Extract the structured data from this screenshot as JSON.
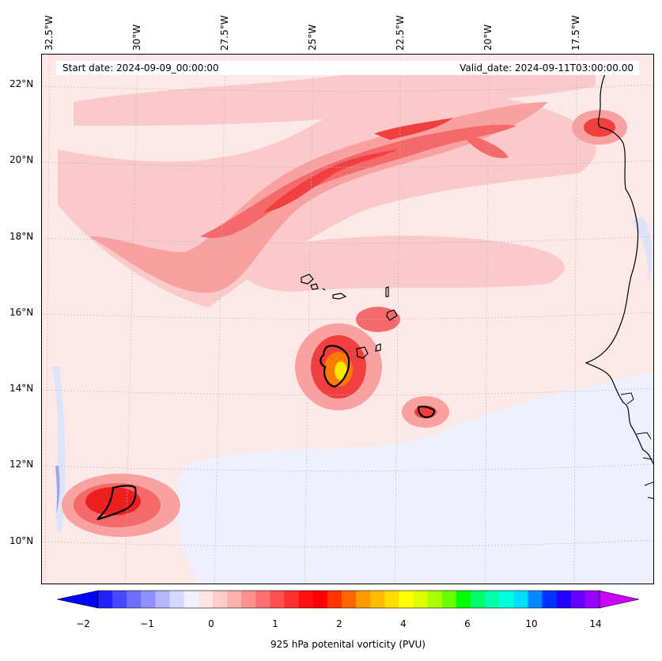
{
  "map": {
    "longitude_labels": [
      "32.5°W",
      "30°W",
      "27.5°W",
      "25°W",
      "22.5°W",
      "20°W",
      "17.5°W"
    ],
    "latitude_labels": [
      "22°N",
      "20°N",
      "18°N",
      "16°N",
      "14°N",
      "12°N",
      "10°N"
    ],
    "start_date": "Start date: 2024-09-09_00:00:00",
    "valid_date": "Valid_date: 2024-09-11T03:00:00.00",
    "colors": {
      "background_light_pink": "#fde8e8",
      "pink": "#fbc3c3",
      "salmon": "#f99c9c",
      "red_light": "#f46a6a",
      "red": "#f13f3f",
      "red_strong": "#ee1f1f",
      "orange": "#ff7a00",
      "yellow": "#ffe600",
      "pale_blue": "#dde3fb",
      "blue": "#7d87f2",
      "coastline": "#000000"
    }
  },
  "colorbar": {
    "tick_labels": [
      "−2",
      "−1",
      "0",
      "1",
      "2",
      "4",
      "6",
      "10",
      "14"
    ],
    "label": "925 hPa potenital vorticity (PVU)",
    "colors": [
      "#0000ff",
      "#2222ff",
      "#4848ff",
      "#6e6eff",
      "#9090ff",
      "#b4b4ff",
      "#d8d8ff",
      "#f0f0ff",
      "#ffe4e4",
      "#ffcccc",
      "#ffb0b0",
      "#ff9090",
      "#ff7070",
      "#ff5050",
      "#ff3030",
      "#ff1010",
      "#ff0000",
      "#ff3300",
      "#ff6600",
      "#ff9900",
      "#ffbb00",
      "#ffdd00",
      "#ffff00",
      "#ddff00",
      "#aaff00",
      "#66ff00",
      "#00ff00",
      "#00ff66",
      "#00ffaa",
      "#00ffdd",
      "#00ddff",
      "#0088ff",
      "#0033ff",
      "#2200ff",
      "#6600ff",
      "#9900ff",
      "#cc00ff"
    ]
  }
}
